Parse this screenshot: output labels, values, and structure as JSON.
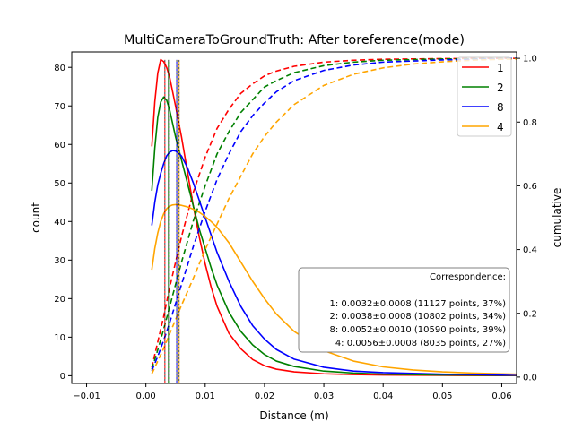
{
  "chart_data": {
    "type": "line",
    "title": "MultiCameraToGroundTruth: After toreference(mode)",
    "xlabel": "Distance (m)",
    "ylabel": "count",
    "y2label": "cumulative",
    "xlim": [
      -0.0125,
      0.0625
    ],
    "ylim": [
      -2,
      84
    ],
    "y2lim": [
      -0.02,
      1.02
    ],
    "xticks": [
      -0.01,
      0.0,
      0.01,
      0.02,
      0.03,
      0.04,
      0.05,
      0.06
    ],
    "xtick_labels": [
      "−0.01",
      "0.00",
      "0.01",
      "0.02",
      "0.03",
      "0.04",
      "0.05",
      "0.06"
    ],
    "yticks": [
      0,
      10,
      20,
      30,
      40,
      50,
      60,
      70,
      80
    ],
    "ytick_labels": [
      "0",
      "10",
      "20",
      "30",
      "40",
      "50",
      "60",
      "70",
      "80"
    ],
    "y2ticks": [
      0.0,
      0.2,
      0.4,
      0.6,
      0.8,
      1.0
    ],
    "y2tick_labels": [
      "0.0",
      "0.2",
      "0.4",
      "0.6",
      "0.8",
      "1.0"
    ],
    "grid": false,
    "legend": {
      "placement": "top-right",
      "entries": [
        "1",
        "2",
        "8",
        "4"
      ]
    },
    "series": [
      {
        "name": "1",
        "color": "#ff0000",
        "mode": 0.0032,
        "count_x": [
          0.001,
          0.0015,
          0.002,
          0.0025,
          0.003,
          0.0035,
          0.004,
          0.005,
          0.006,
          0.007,
          0.008,
          0.009,
          0.01,
          0.011,
          0.012,
          0.014,
          0.016,
          0.018,
          0.02,
          0.022,
          0.025,
          0.03,
          0.035,
          0.04,
          0.05,
          0.06,
          0.0625
        ],
        "count_y": [
          59.5,
          71,
          78.5,
          82,
          81.5,
          80,
          77.5,
          70,
          62,
          53,
          44,
          36,
          29,
          23,
          18,
          11,
          7,
          4.2,
          2.6,
          1.7,
          1.0,
          0.5,
          0.3,
          0.2,
          0.1,
          0.05,
          0.05
        ],
        "cum_x": [
          0.001,
          0.002,
          0.003,
          0.004,
          0.005,
          0.006,
          0.008,
          0.01,
          0.012,
          0.014,
          0.016,
          0.018,
          0.02,
          0.022,
          0.025,
          0.03,
          0.035,
          0.04,
          0.05,
          0.06,
          0.0625
        ],
        "cum_y": [
          0.03,
          0.11,
          0.19,
          0.28,
          0.36,
          0.44,
          0.58,
          0.69,
          0.78,
          0.84,
          0.89,
          0.92,
          0.945,
          0.96,
          0.975,
          0.988,
          0.994,
          0.997,
          0.999,
          1.0,
          1.0
        ]
      },
      {
        "name": "2",
        "color": "#008000",
        "mode": 0.0038,
        "count_x": [
          0.001,
          0.0015,
          0.002,
          0.0025,
          0.003,
          0.0035,
          0.004,
          0.005,
          0.006,
          0.007,
          0.008,
          0.009,
          0.01,
          0.011,
          0.012,
          0.014,
          0.016,
          0.018,
          0.02,
          0.022,
          0.025,
          0.03,
          0.035,
          0.04,
          0.05,
          0.06,
          0.0625
        ],
        "count_y": [
          48,
          59,
          67,
          71,
          72.3,
          71.5,
          69,
          62,
          56,
          50,
          44,
          38,
          33,
          28,
          23.5,
          16.5,
          11.5,
          8,
          5.5,
          3.8,
          2.4,
          1.2,
          0.7,
          0.4,
          0.2,
          0.1,
          0.1
        ],
        "cum_x": [
          0.001,
          0.002,
          0.003,
          0.004,
          0.005,
          0.006,
          0.008,
          0.01,
          0.012,
          0.014,
          0.016,
          0.018,
          0.02,
          0.022,
          0.025,
          0.03,
          0.035,
          0.04,
          0.05,
          0.06,
          0.0625
        ],
        "cum_y": [
          0.025,
          0.085,
          0.15,
          0.22,
          0.29,
          0.36,
          0.49,
          0.6,
          0.7,
          0.77,
          0.83,
          0.87,
          0.91,
          0.93,
          0.955,
          0.977,
          0.988,
          0.994,
          0.998,
          0.999,
          1.0
        ]
      },
      {
        "name": "8",
        "color": "#0000ff",
        "mode": 0.0052,
        "count_x": [
          0.001,
          0.0015,
          0.002,
          0.0025,
          0.003,
          0.0035,
          0.004,
          0.0045,
          0.005,
          0.0055,
          0.006,
          0.007,
          0.008,
          0.009,
          0.01,
          0.011,
          0.012,
          0.014,
          0.016,
          0.018,
          0.02,
          0.022,
          0.025,
          0.03,
          0.035,
          0.04,
          0.05,
          0.06,
          0.0625
        ],
        "count_y": [
          39,
          45,
          49.5,
          52.5,
          55,
          57,
          58,
          58.4,
          58.3,
          57.8,
          57,
          54,
          50,
          45.5,
          41,
          36.5,
          32,
          24.5,
          18,
          13,
          9.5,
          6.8,
          4.3,
          2.2,
          1.2,
          0.8,
          0.4,
          0.2,
          0.2
        ],
        "cum_x": [
          0.001,
          0.002,
          0.003,
          0.004,
          0.005,
          0.006,
          0.008,
          0.01,
          0.012,
          0.014,
          0.016,
          0.018,
          0.02,
          0.022,
          0.025,
          0.03,
          0.035,
          0.04,
          0.05,
          0.06,
          0.0625
        ],
        "cum_y": [
          0.02,
          0.065,
          0.115,
          0.17,
          0.23,
          0.29,
          0.41,
          0.52,
          0.62,
          0.7,
          0.77,
          0.82,
          0.86,
          0.895,
          0.93,
          0.962,
          0.979,
          0.988,
          0.995,
          0.998,
          1.0
        ]
      },
      {
        "name": "4",
        "color": "#ffa500",
        "mode": 0.0056,
        "count_x": [
          0.001,
          0.0015,
          0.002,
          0.0025,
          0.003,
          0.0035,
          0.004,
          0.0045,
          0.005,
          0.0055,
          0.006,
          0.007,
          0.008,
          0.009,
          0.01,
          0.011,
          0.012,
          0.013,
          0.014,
          0.016,
          0.018,
          0.02,
          0.022,
          0.025,
          0.03,
          0.035,
          0.04,
          0.045,
          0.05,
          0.055,
          0.06,
          0.0625
        ],
        "count_y": [
          27.5,
          33,
          37,
          40,
          42,
          43.3,
          44,
          44.3,
          44.4,
          44.3,
          44.2,
          43.8,
          43.2,
          42.4,
          41.3,
          40,
          38.5,
          36.5,
          34.5,
          29.5,
          24.5,
          20,
          16,
          11.5,
          6.5,
          3.8,
          2.3,
          1.5,
          1.0,
          0.7,
          0.5,
          0.4
        ],
        "cum_x": [
          0.001,
          0.002,
          0.003,
          0.004,
          0.005,
          0.006,
          0.008,
          0.01,
          0.012,
          0.014,
          0.016,
          0.018,
          0.02,
          0.022,
          0.025,
          0.03,
          0.035,
          0.04,
          0.045,
          0.05,
          0.055,
          0.06,
          0.0625
        ],
        "cum_y": [
          0.01,
          0.05,
          0.09,
          0.135,
          0.18,
          0.225,
          0.31,
          0.4,
          0.48,
          0.56,
          0.63,
          0.7,
          0.755,
          0.8,
          0.855,
          0.915,
          0.95,
          0.97,
          0.982,
          0.989,
          0.994,
          0.997,
          0.998
        ]
      }
    ],
    "textbox": {
      "placement": "lower-right",
      "title": "Correspondence:",
      "lines": [
        "1: 0.0032±0.0008 (11127 points, 37%)",
        "2: 0.0038±0.0008 (10802 points, 34%)",
        "8: 0.0052±0.0010 (10590 points, 39%)",
        "4: 0.0056±0.0008 (8035 points, 27%)"
      ]
    }
  }
}
